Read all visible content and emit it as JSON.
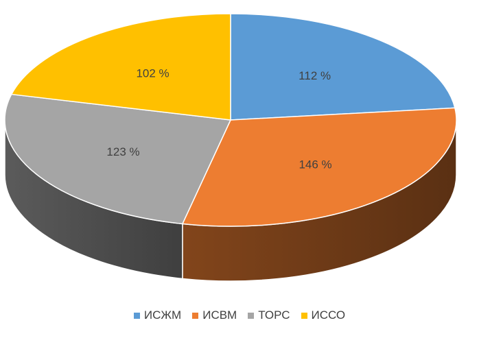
{
  "chart_data": {
    "type": "pie",
    "style": "3d",
    "categories": [
      "ИСЖМ",
      "ИСВМ",
      "ТОРС",
      "ИССО"
    ],
    "values": [
      112,
      146,
      123,
      102
    ],
    "data_labels": [
      "112 %",
      "146 %",
      "123 %",
      "102 %"
    ],
    "colors": [
      "#5B9BD5",
      "#ED7D31",
      "#A5A5A5",
      "#FFC000"
    ],
    "legend_position": "bottom"
  }
}
